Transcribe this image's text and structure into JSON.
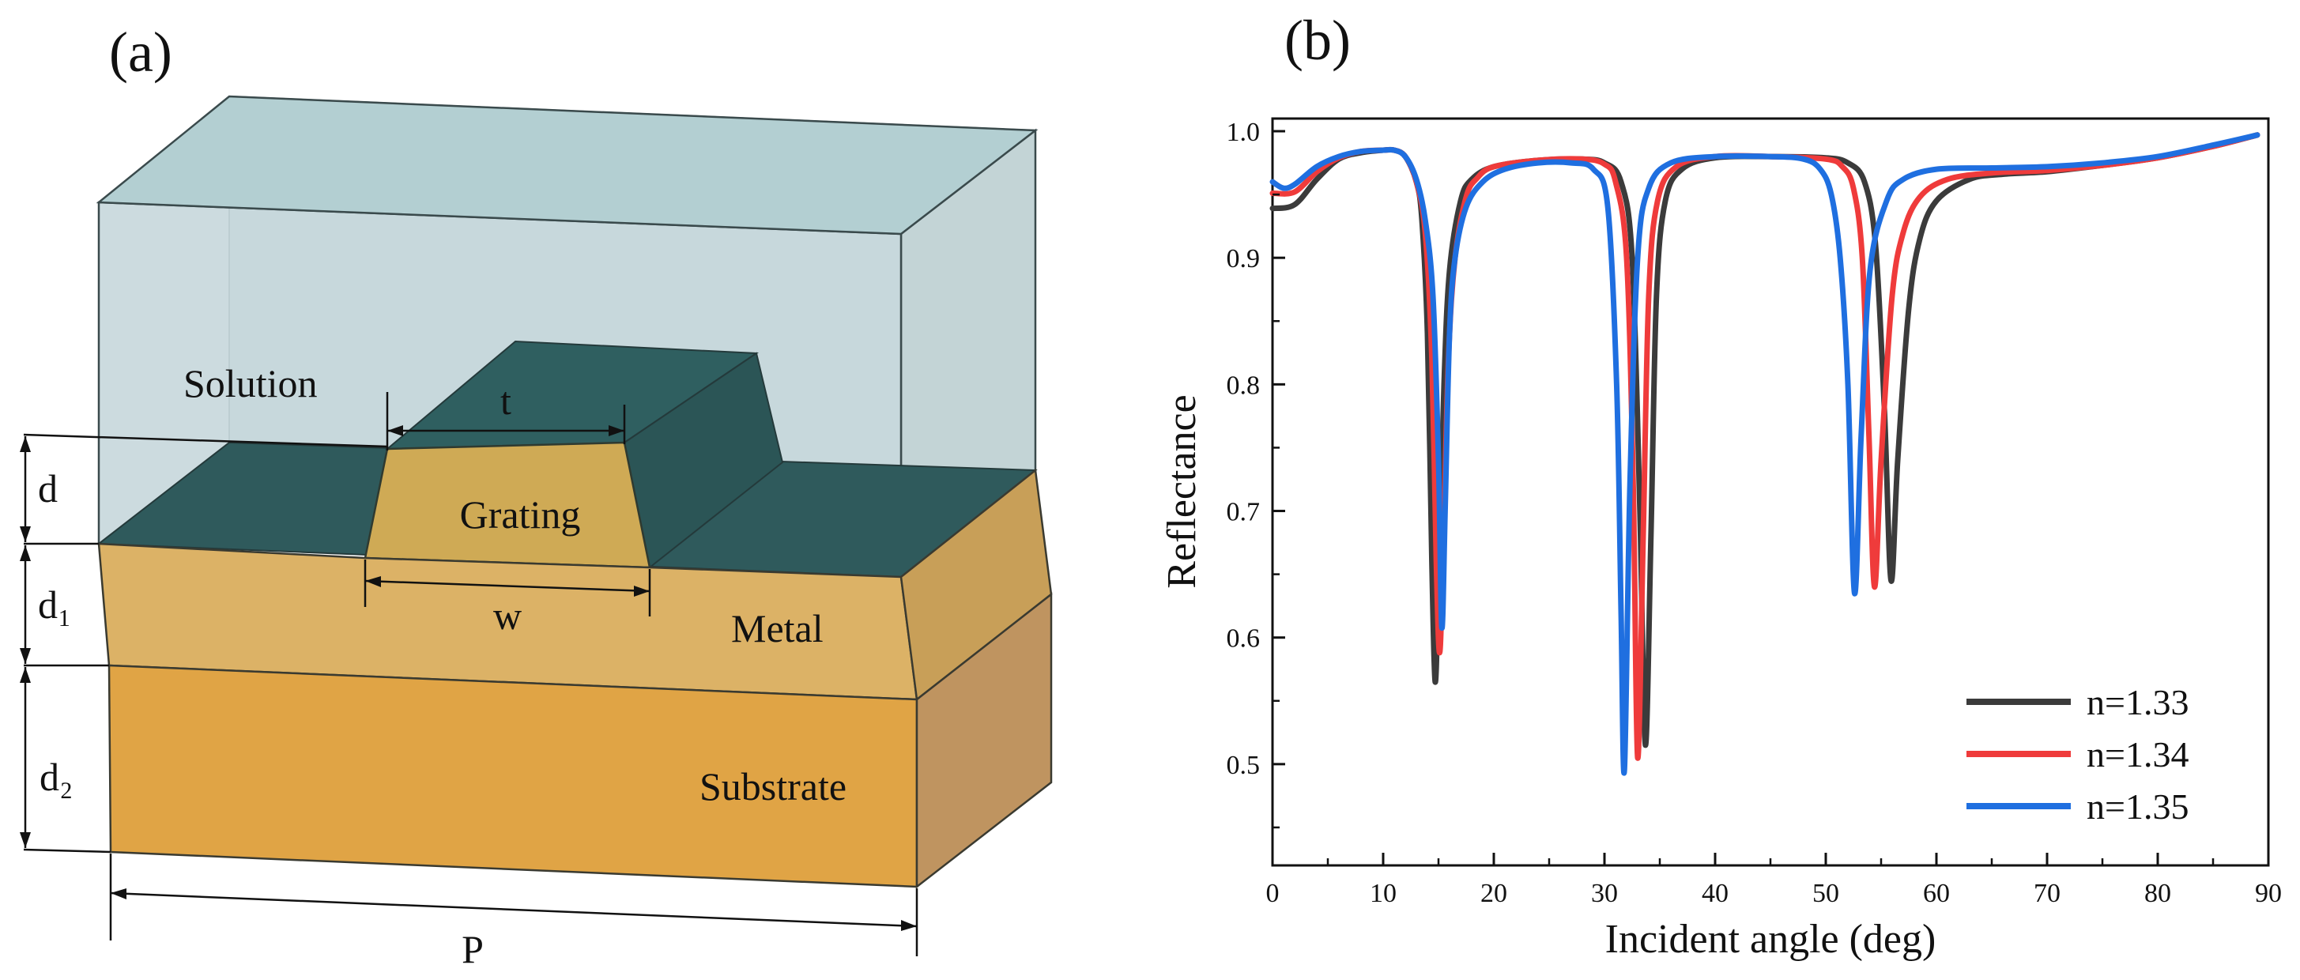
{
  "panel_a": {
    "label": "(a)",
    "labels": {
      "solution": "Solution",
      "grating": "Grating",
      "metal": "Metal",
      "substrate": "Substrate",
      "t": "t",
      "w": "w",
      "d": "d",
      "d1": "d₁",
      "d2": "d₂",
      "p": "P"
    },
    "colors": {
      "solution_fill": "#c6d8dc",
      "grating_top": "#2f5f60",
      "grating_front": "#cfaa55",
      "metal_front": "#dcb266",
      "substrate_front": "#e0a445"
    }
  },
  "panel_b": {
    "label": "(b)"
  },
  "chart_data": {
    "type": "line",
    "title": "",
    "xlabel": "Incident angle (deg)",
    "ylabel": "Reflectance",
    "xlim": [
      0,
      90
    ],
    "ylim": [
      0.42,
      1.01
    ],
    "xticks": [
      "0",
      "10",
      "20",
      "30",
      "40",
      "50",
      "60",
      "70",
      "80",
      "90"
    ],
    "yticks": [
      "0.5",
      "0.6",
      "0.7",
      "0.8",
      "0.9",
      "1.0"
    ],
    "legend_position": "bottom-right",
    "series": [
      {
        "name": "n=1.33",
        "color": "#3b3b3b",
        "x": [
          0,
          2,
          4,
          6,
          8,
          10,
          11,
          12,
          13,
          13.5,
          14,
          14.4,
          14.7,
          15.0,
          15.5,
          16,
          17,
          18,
          20,
          24,
          28,
          30,
          31.5,
          32.5,
          33.2,
          33.7,
          34.2,
          34.7,
          35.5,
          37,
          40,
          45,
          50,
          52,
          53.5,
          54.5,
          55.3,
          55.9,
          56.5,
          57.5,
          58.5,
          60,
          63,
          66,
          70,
          75,
          80,
          85,
          89
        ],
        "values": [
          0.939,
          0.942,
          0.962,
          0.978,
          0.983,
          0.985,
          0.985,
          0.98,
          0.96,
          0.93,
          0.84,
          0.66,
          0.565,
          0.64,
          0.8,
          0.89,
          0.945,
          0.962,
          0.972,
          0.977,
          0.978,
          0.975,
          0.96,
          0.9,
          0.7,
          0.515,
          0.68,
          0.87,
          0.945,
          0.97,
          0.979,
          0.98,
          0.979,
          0.975,
          0.96,
          0.91,
          0.78,
          0.645,
          0.74,
          0.86,
          0.915,
          0.945,
          0.962,
          0.966,
          0.968,
          0.973,
          0.979,
          0.988,
          0.997
        ]
      },
      {
        "name": "n=1.34",
        "color": "#ef3b3b",
        "x": [
          0,
          2,
          4,
          6,
          8,
          10,
          11,
          12,
          13,
          13.8,
          14.4,
          14.8,
          15.1,
          15.4,
          15.9,
          16.5,
          17.5,
          18.5,
          20,
          24,
          28,
          30,
          31,
          32,
          32.6,
          33.0,
          33.5,
          34.0,
          34.8,
          36.5,
          40,
          45,
          50,
          51.5,
          52.5,
          53.3,
          53.9,
          54.4,
          55.0,
          56,
          57,
          58.5,
          61,
          65,
          70,
          75,
          80,
          85,
          89
        ],
        "values": [
          0.951,
          0.952,
          0.968,
          0.979,
          0.984,
          0.985,
          0.985,
          0.98,
          0.96,
          0.92,
          0.82,
          0.66,
          0.588,
          0.66,
          0.82,
          0.9,
          0.948,
          0.963,
          0.972,
          0.977,
          0.978,
          0.974,
          0.96,
          0.9,
          0.72,
          0.505,
          0.68,
          0.87,
          0.945,
          0.972,
          0.98,
          0.98,
          0.978,
          0.972,
          0.955,
          0.9,
          0.76,
          0.64,
          0.74,
          0.87,
          0.92,
          0.948,
          0.962,
          0.967,
          0.969,
          0.973,
          0.979,
          0.988,
          0.997
        ]
      },
      {
        "name": "n=1.35",
        "color": "#1f6fe0",
        "x": [
          0,
          1,
          2,
          4,
          6,
          8,
          10,
          11,
          12,
          13,
          13.8,
          14.5,
          15.0,
          15.3,
          15.6,
          16.0,
          16.5,
          17.5,
          19,
          21,
          24,
          27,
          29,
          30.3,
          31.1,
          31.5,
          31.8,
          32.3,
          33,
          34,
          36,
          40,
          45,
          48,
          49.5,
          50.5,
          51.3,
          52.0,
          52.6,
          53.2,
          54,
          55.5,
          57,
          60,
          65,
          70,
          75,
          80,
          85,
          89
        ],
        "values": [
          0.96,
          0.955,
          0.958,
          0.972,
          0.98,
          0.984,
          0.985,
          0.985,
          0.98,
          0.962,
          0.93,
          0.87,
          0.74,
          0.608,
          0.7,
          0.84,
          0.9,
          0.94,
          0.96,
          0.97,
          0.975,
          0.975,
          0.97,
          0.94,
          0.8,
          0.62,
          0.495,
          0.72,
          0.9,
          0.955,
          0.975,
          0.98,
          0.98,
          0.978,
          0.97,
          0.95,
          0.9,
          0.8,
          0.635,
          0.76,
          0.89,
          0.945,
          0.962,
          0.97,
          0.971,
          0.972,
          0.975,
          0.98,
          0.989,
          0.997
        ]
      }
    ]
  }
}
